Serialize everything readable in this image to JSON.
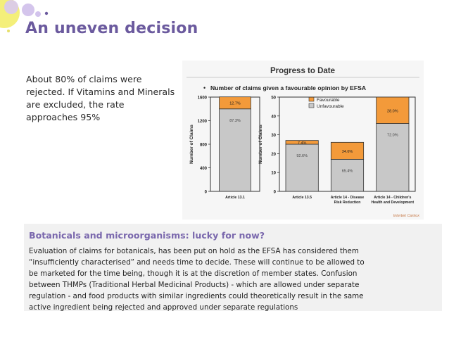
{
  "slide": {
    "title": "An uneven decision",
    "intro": "About 80% of claims were rejected.  If Vitamins and Minerals are excluded, the rate approaches 95%"
  },
  "figure": {
    "heading": "Progress to Date",
    "subtitle": "Number of claims given a favourable opinion by EFSA",
    "legend": [
      "Favourable",
      "Unfavourable"
    ],
    "credit": "Intertek Cantox",
    "colors": {
      "favourable": "#f39a3a",
      "unfavourable": "#c8c8c8",
      "frame": "#333333"
    }
  },
  "chart_data": [
    {
      "type": "bar",
      "ylabel": "Number of Claims",
      "ylim": [
        0,
        1600
      ],
      "yticks": [
        "1600",
        "1200",
        "800",
        "400",
        "0"
      ],
      "categories": [
        "Article 13.1"
      ],
      "series": [
        {
          "name": "Unfavourable",
          "values": [
            1400
          ],
          "labels": [
            "87.3%"
          ]
        },
        {
          "name": "Favourable",
          "values": [
            204
          ],
          "labels": [
            "12.7%"
          ]
        }
      ]
    },
    {
      "type": "bar",
      "ylabel": "Number of Claims",
      "ylim": [
        0,
        50
      ],
      "yticks": [
        "50",
        "40",
        "30",
        "20",
        "10",
        "0"
      ],
      "categories": [
        "Article 13.5",
        "Article 14 - Disease Risk Reduction",
        "Article 14 - Children's Health and Development"
      ],
      "series": [
        {
          "name": "Unfavourable",
          "values": [
            25,
            17,
            36
          ],
          "labels": [
            "92.6%",
            "65.4%",
            "72.0%"
          ]
        },
        {
          "name": "Favourable",
          "values": [
            2,
            9,
            14
          ],
          "labels": [
            "7.4%",
            "34.6%",
            "28.0%"
          ]
        }
      ]
    }
  ],
  "box": {
    "title": "Botanicals and microorganisms: lucky for now?",
    "body": "Evaluation of claims for botanicals, has been put on hold as the EFSA has considered them “insufficiently characterised” and needs time to decide.  These will continue to be allowed to be marketed for the time being, though it is at the discretion of member states. Confusion between THMPs (Traditional Herbal Medicinal Products) - which are allowed under separate regulation - and food products with similar ingredients could theoretically result in the same active ingredient being rejected and approved under separate regulations"
  }
}
